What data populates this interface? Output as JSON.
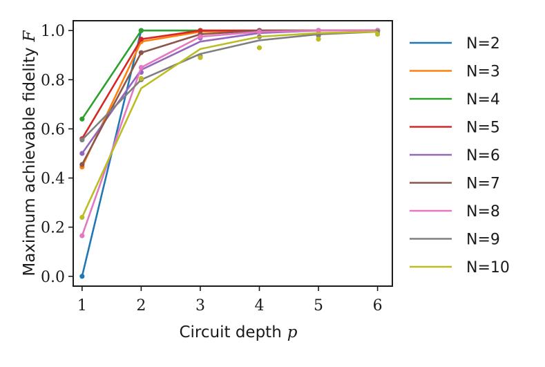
{
  "chart_data": {
    "type": "line",
    "title": "",
    "xlabel": "Circuit depth",
    "xlabel_symbol": "p",
    "ylabel": "Maximum achievable fidelity",
    "ylabel_symbol": "F",
    "x": [
      1,
      2,
      3,
      4,
      5,
      6
    ],
    "xticks": [
      "1",
      "2",
      "3",
      "4",
      "5",
      "6"
    ],
    "yticks": [
      "0.0",
      "0.2",
      "0.4",
      "0.6",
      "0.8",
      "1.0"
    ],
    "xlim": [
      0.85,
      6.25
    ],
    "ylim": [
      -0.04,
      1.04
    ],
    "grid": false,
    "legend_position": "outside-right",
    "series": [
      {
        "name": "N=2",
        "color": "#1f77b4",
        "line": [
          0.0,
          1.0,
          1.0,
          1.0,
          1.0,
          1.0
        ],
        "points": [
          0.0,
          1.0,
          1.0,
          1.0,
          1.0,
          1.0
        ]
      },
      {
        "name": "N=3",
        "color": "#ff7f0e",
        "line": [
          0.445,
          0.955,
          0.995,
          1.0,
          1.0,
          1.0
        ],
        "points": [
          0.445,
          0.955,
          0.995,
          1.0,
          1.0,
          1.0
        ]
      },
      {
        "name": "N=4",
        "color": "#2ca02c",
        "line": [
          0.64,
          1.0,
          1.0,
          1.0,
          1.0,
          1.0
        ],
        "points": [
          0.64,
          1.0,
          1.0,
          1.0,
          1.0,
          1.0
        ]
      },
      {
        "name": "N=5",
        "color": "#d62728",
        "line": [
          0.56,
          0.965,
          1.0,
          1.0,
          1.0,
          1.0
        ],
        "points": [
          0.56,
          0.965,
          1.0,
          1.0,
          1.0,
          1.0
        ]
      },
      {
        "name": "N=6",
        "color": "#9467bd",
        "line": [
          0.5,
          0.84,
          0.955,
          0.99,
          1.0,
          1.0
        ],
        "points": [
          0.5,
          0.83,
          0.97,
          1.0,
          1.0,
          1.0
        ]
      },
      {
        "name": "N=7",
        "color": "#8c564b",
        "line": [
          0.455,
          0.91,
          0.985,
          1.0,
          1.0,
          1.0
        ],
        "points": [
          0.455,
          0.91,
          0.985,
          1.0,
          1.0,
          1.0
        ]
      },
      {
        "name": "N=8",
        "color": "#e377c2",
        "line": [
          0.165,
          0.85,
          0.975,
          0.995,
          1.0,
          1.0
        ],
        "points": [
          0.165,
          0.85,
          0.975,
          0.995,
          1.0,
          1.0
        ]
      },
      {
        "name": "N=9",
        "color": "#7f7f7f",
        "line": [
          0.555,
          0.8,
          0.905,
          0.96,
          0.985,
          0.995
        ],
        "points": [
          0.555,
          0.8,
          0.895,
          0.975,
          0.98,
          0.995
        ]
      },
      {
        "name": "N=10",
        "color": "#bcbd22",
        "line": [
          0.24,
          0.765,
          0.925,
          0.975,
          0.99,
          0.995
        ],
        "points": [
          0.24,
          0.805,
          0.89,
          0.93,
          0.965,
          0.985
        ]
      }
    ]
  }
}
